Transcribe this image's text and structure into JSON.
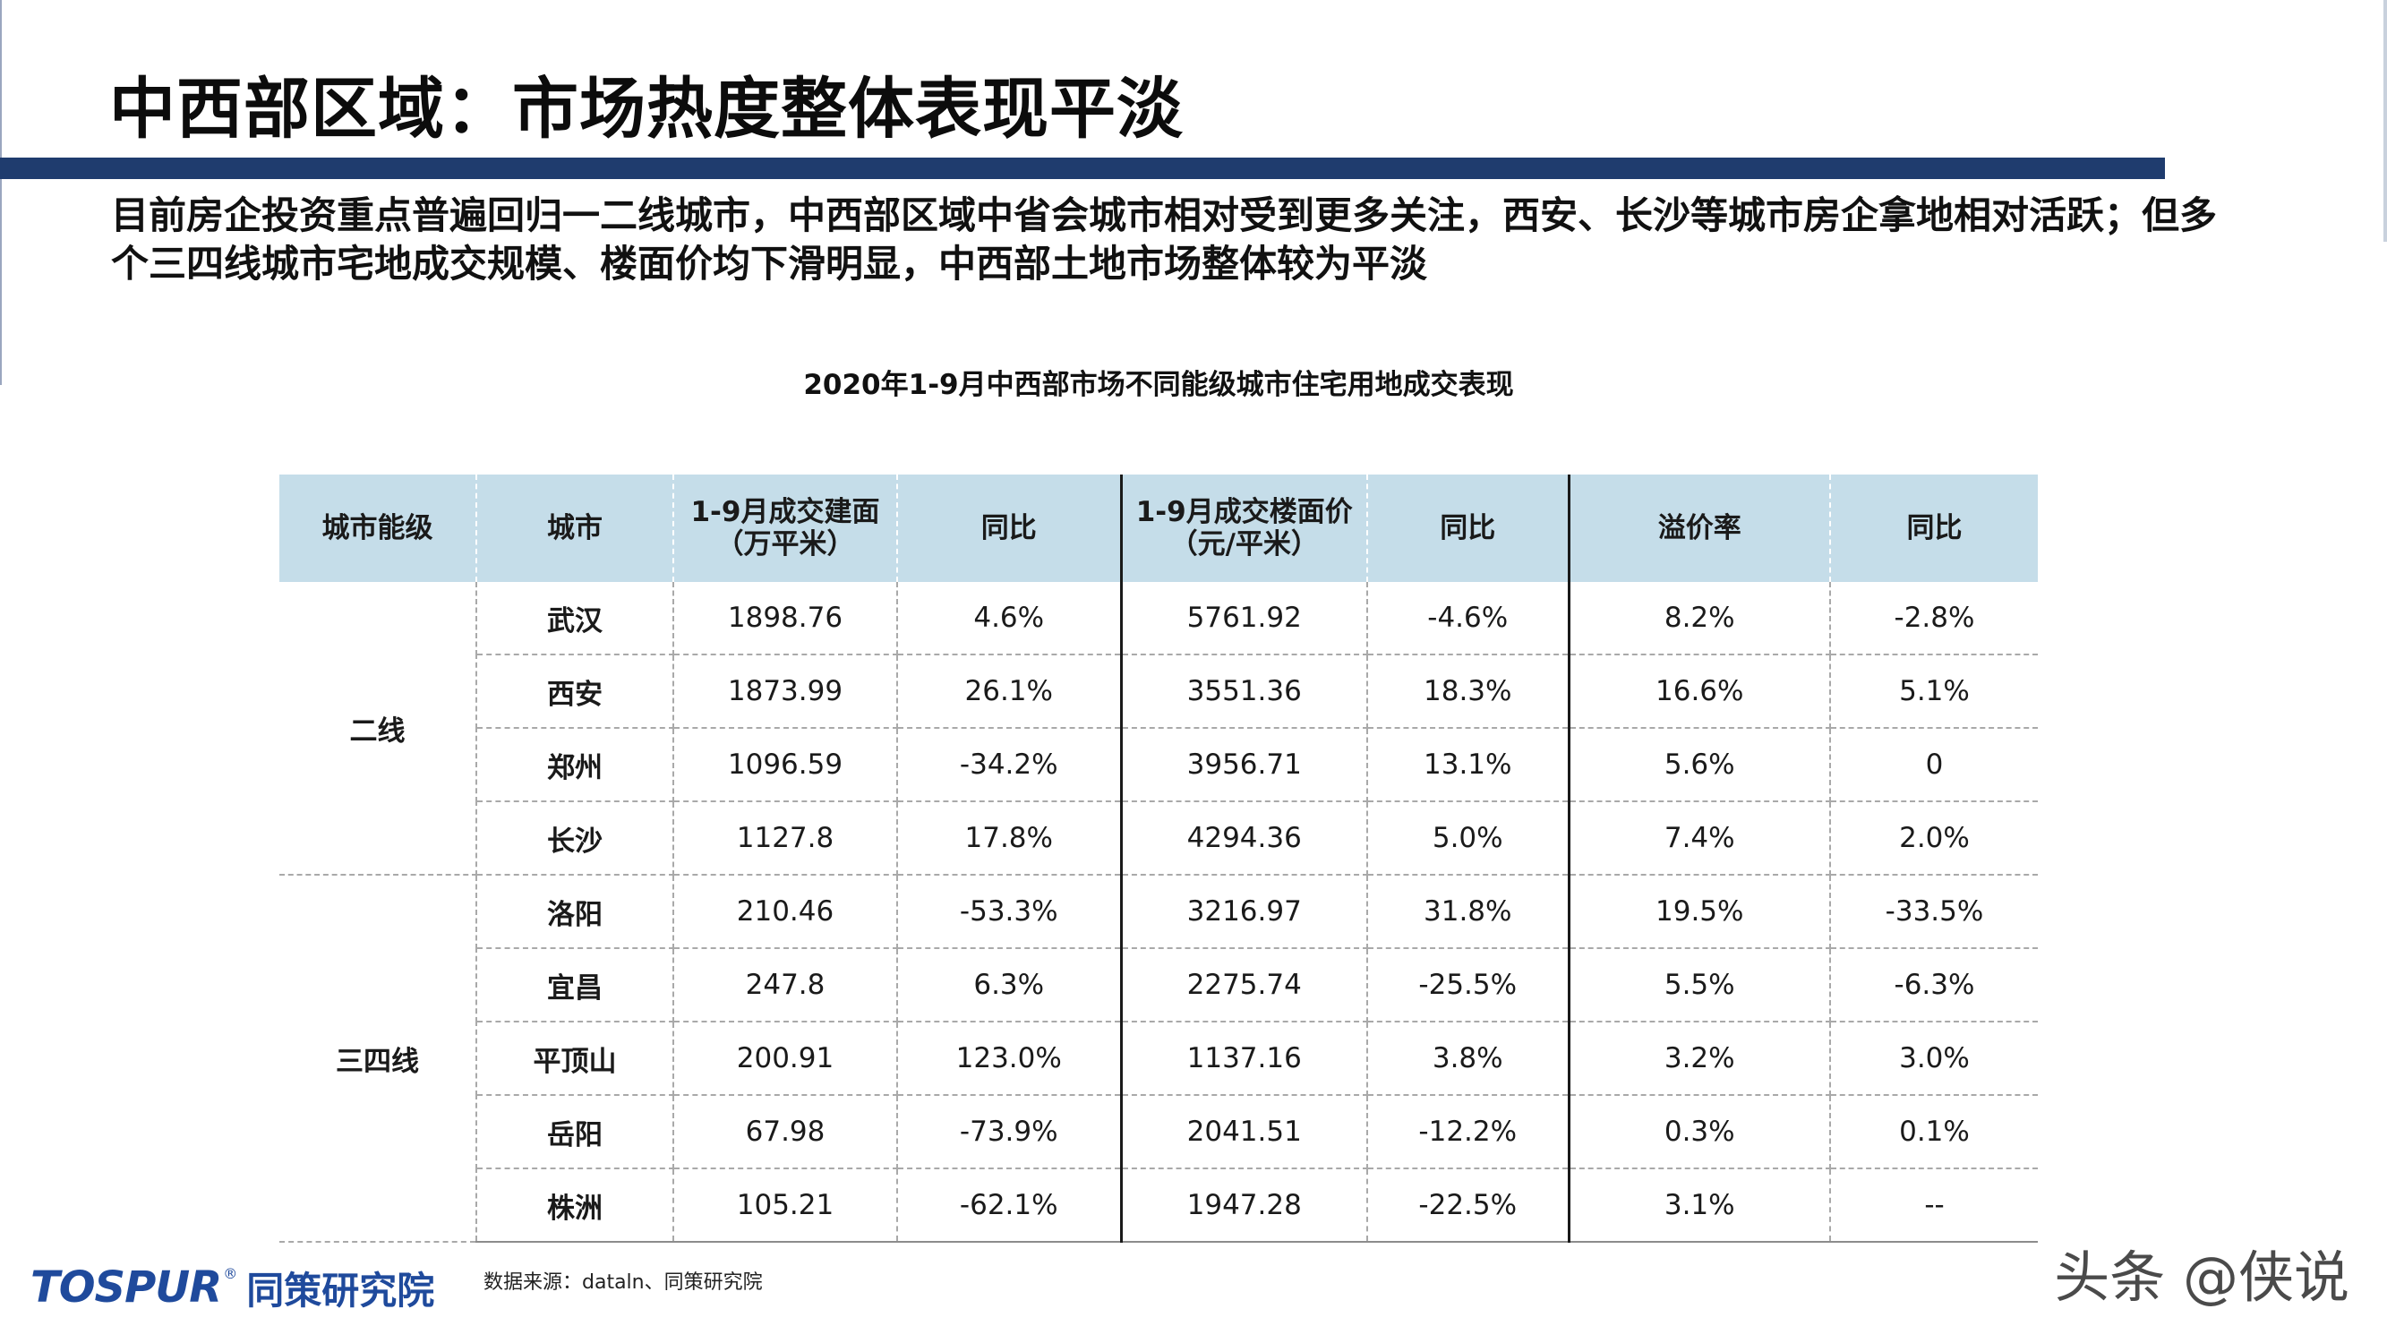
{
  "title": "中西部区域：市场热度整体表现平淡",
  "intro": "目前房企投资重点普遍回归一二线城市，中西部区域中省会城市相对受到更多关注，西安、长沙等城市房企拿地相对活跃；但多个三四线城市宅地成交规模、楼面价均下滑明显，中西部土地市场整体较为平淡",
  "table_title": "2020年1-9月中西部市场不同能级城市住宅用地成交表现",
  "headers": {
    "tier": "城市能级",
    "city": "城市",
    "area_line1": "1-9月成交建面",
    "area_line2": "（万平米）",
    "area_yoy": "同比",
    "price_line1": "1-9月成交楼面价",
    "price_line2": "（元/平米）",
    "price_yoy": "同比",
    "premium": "溢价率",
    "premium_yoy": "同比"
  },
  "tiers": {
    "second": "二线",
    "third_fourth": "三四线"
  },
  "rows": [
    {
      "city": "武汉",
      "area": "1898.76",
      "area_yoy": "4.6%",
      "price": "5761.92",
      "price_yoy": "-4.6%",
      "premium": "8.2%",
      "premium_yoy": "-2.8%"
    },
    {
      "city": "西安",
      "area": "1873.99",
      "area_yoy": "26.1%",
      "price": "3551.36",
      "price_yoy": "18.3%",
      "premium": "16.6%",
      "premium_yoy": "5.1%"
    },
    {
      "city": "郑州",
      "area": "1096.59",
      "area_yoy": "-34.2%",
      "price": "3956.71",
      "price_yoy": "13.1%",
      "premium": "5.6%",
      "premium_yoy": "0"
    },
    {
      "city": "长沙",
      "area": "1127.8",
      "area_yoy": "17.8%",
      "price": "4294.36",
      "price_yoy": "5.0%",
      "premium": "7.4%",
      "premium_yoy": "2.0%"
    },
    {
      "city": "洛阳",
      "area": "210.46",
      "area_yoy": "-53.3%",
      "price": "3216.97",
      "price_yoy": "31.8%",
      "premium": "19.5%",
      "premium_yoy": "-33.5%"
    },
    {
      "city": "宜昌",
      "area": "247.8",
      "area_yoy": "6.3%",
      "price": "2275.74",
      "price_yoy": "-25.5%",
      "premium": "5.5%",
      "premium_yoy": "-6.3%"
    },
    {
      "city": "平顶山",
      "area": "200.91",
      "area_yoy": "123.0%",
      "price": "1137.16",
      "price_yoy": "3.8%",
      "premium": "3.2%",
      "premium_yoy": "3.0%"
    },
    {
      "city": "岳阳",
      "area": "67.98",
      "area_yoy": "-73.9%",
      "price": "2041.51",
      "price_yoy": "-12.2%",
      "premium": "0.3%",
      "premium_yoy": "0.1%"
    },
    {
      "city": "株洲",
      "area": "105.21",
      "area_yoy": "-62.1%",
      "price": "1947.28",
      "price_yoy": "-22.5%",
      "premium": "3.1%",
      "premium_yoy": "--"
    }
  ],
  "colors": {
    "header_bg": "#c5dde9",
    "title_bar": "#1f3c6e",
    "positive": "#d9222a",
    "negative": "#58a83c",
    "logo": "#1f4a9c"
  },
  "footer": {
    "logo_text": "TOSPUR",
    "logo_reg": "®",
    "logo_cn": "同策研究院",
    "source": "数据来源：dataln、同策研究院",
    "watermark": "头条 @侠说"
  }
}
